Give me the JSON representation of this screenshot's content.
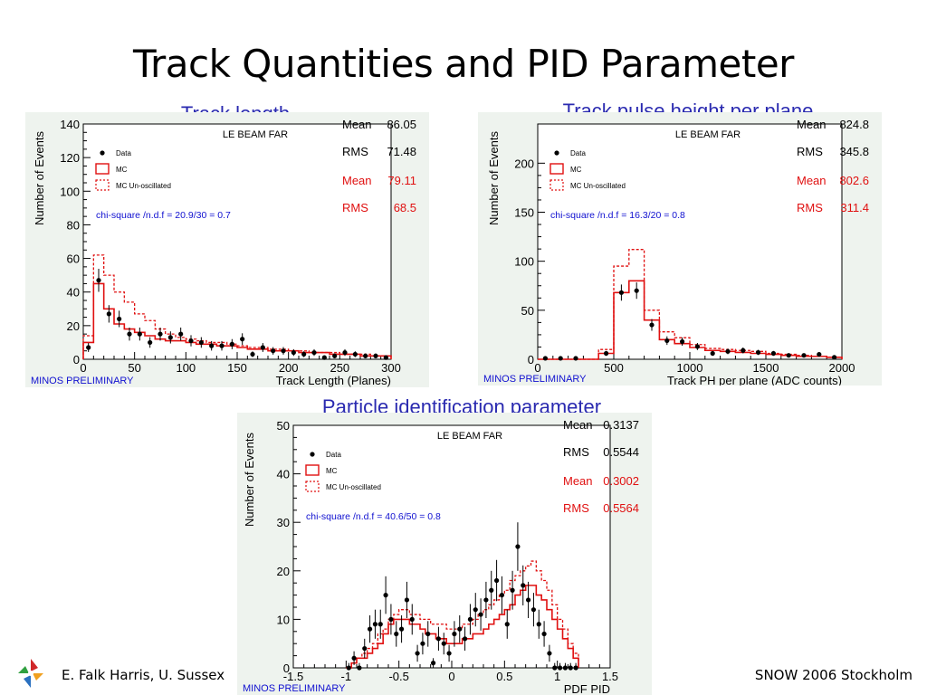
{
  "slide": {
    "title": "Track Quantities and PID Parameter",
    "footer_left": "E. Falk Harris, U. Sussex",
    "footer_right": "SNOW 2006 Stockholm"
  },
  "colors": {
    "caption": "#2a2ab0",
    "mc": "#e01010",
    "data": "#000000",
    "chi": "#1010d0",
    "prelim": "#1010d0",
    "frame_bg": "#eef3ee"
  },
  "chart_data": [
    {
      "type": "histogram",
      "caption": "Track length",
      "title": "LE BEAM FAR",
      "xlabel": "Track Length (Planes)",
      "ylabel": "Number of Events",
      "xlim": [
        0,
        300
      ],
      "ylim": [
        0,
        140
      ],
      "xticks": [
        0,
        50,
        100,
        150,
        200,
        250,
        300
      ],
      "yticks": [
        0,
        20,
        40,
        60,
        80,
        100,
        120,
        140
      ],
      "legend": [
        "Data",
        "MC",
        "MC Un-oscillated"
      ],
      "stats": [
        {
          "label": "Mean",
          "value": "86.05",
          "color": "#000000"
        },
        {
          "label": "RMS",
          "value": "71.48",
          "color": "#000000"
        },
        {
          "label": "Mean",
          "value": "79.11",
          "color": "#e01010"
        },
        {
          "label": "RMS",
          "value": "68.5",
          "color": "#e01010"
        }
      ],
      "chi2": "chi-square /n.d.f =  20.9/30 =   0.7",
      "preliminary": "MINOS PRELIMINARY",
      "bin_edges": [
        0,
        10,
        20,
        30,
        40,
        50,
        60,
        70,
        80,
        90,
        100,
        110,
        120,
        130,
        140,
        150,
        160,
        170,
        180,
        190,
        200,
        210,
        220,
        230,
        240,
        250,
        260,
        270,
        280,
        290,
        300
      ],
      "series": [
        {
          "name": "MC",
          "values": [
            10,
            45,
            30,
            21,
            18,
            16,
            14,
            12,
            11,
            11,
            10,
            9,
            9,
            8,
            8,
            7,
            6,
            6,
            5,
            5,
            5,
            4,
            4,
            4,
            3,
            3,
            3,
            2,
            2,
            2
          ]
        },
        {
          "name": "MC Un-oscillated",
          "values": [
            14,
            62,
            50,
            40,
            34,
            27,
            23,
            18,
            15,
            13,
            12,
            11,
            10,
            10,
            9,
            8,
            7,
            7,
            6,
            6,
            5,
            5,
            4,
            4,
            4,
            3,
            3,
            3,
            2,
            2
          ]
        },
        {
          "name": "Data",
          "values": [
            7,
            47,
            27,
            24,
            15,
            15,
            10,
            15,
            13,
            15,
            11,
            10,
            8,
            8,
            9,
            12,
            3,
            7,
            5,
            5,
            4,
            3,
            4,
            1,
            2,
            4,
            3,
            2,
            2,
            1
          ]
        }
      ]
    },
    {
      "type": "histogram",
      "caption": "Track pulse height per plane",
      "title": "LE BEAM FAR",
      "xlabel": "Track PH per plane (ADC counts)",
      "ylabel": "Number of Events",
      "xlim": [
        0,
        2000
      ],
      "ylim": [
        0,
        240
      ],
      "xticks": [
        0,
        500,
        1000,
        1500,
        2000
      ],
      "yticks": [
        0,
        50,
        100,
        150,
        200
      ],
      "legend": [
        "Data",
        "MC",
        "MC Un-oscillated"
      ],
      "stats": [
        {
          "label": "Mean",
          "value": "824.8",
          "color": "#000000"
        },
        {
          "label": "RMS",
          "value": "345.8",
          "color": "#000000"
        },
        {
          "label": "Mean",
          "value": "802.6",
          "color": "#e01010"
        },
        {
          "label": "RMS",
          "value": "311.4",
          "color": "#e01010"
        }
      ],
      "chi2": "chi-square /n.d.f =  16.3/20 =   0.8",
      "preliminary": "MINOS PRELIMINARY",
      "bin_edges": [
        0,
        100,
        200,
        300,
        400,
        500,
        600,
        700,
        800,
        900,
        1000,
        1100,
        1200,
        1300,
        1400,
        1500,
        1600,
        1700,
        1800,
        1900,
        2000
      ],
      "series": [
        {
          "name": "MC",
          "values": [
            0,
            0,
            0,
            0,
            6,
            68,
            80,
            40,
            20,
            16,
            12,
            9,
            8,
            7,
            6,
            5,
            4,
            3,
            3,
            2
          ]
        },
        {
          "name": "MC Un-oscillated",
          "values": [
            0,
            0,
            0,
            0,
            10,
            95,
            112,
            50,
            28,
            22,
            15,
            11,
            10,
            9,
            8,
            6,
            5,
            4,
            3,
            2
          ]
        },
        {
          "name": "Data",
          "values": [
            1,
            1,
            1,
            null,
            6,
            68,
            70,
            35,
            19,
            18,
            13,
            6,
            8,
            9,
            7,
            6,
            4,
            4,
            5,
            2
          ]
        }
      ]
    },
    {
      "type": "histogram",
      "caption": "Particle identification parameter",
      "title": "LE BEAM FAR",
      "xlabel": "PDF PID",
      "ylabel": "Number of Events",
      "xlim": [
        -1.5,
        1.5
      ],
      "ylim": [
        0,
        50
      ],
      "xticks": [
        -1.5,
        -1,
        -0.5,
        0,
        0.5,
        1,
        1.5
      ],
      "yticks": [
        0,
        10,
        20,
        30,
        40,
        50
      ],
      "legend": [
        "Data",
        "MC",
        "MC Un-oscillated"
      ],
      "stats": [
        {
          "label": "Mean",
          "value": "0.3137",
          "color": "#000000"
        },
        {
          "label": "RMS",
          "value": "0.5544",
          "color": "#000000"
        },
        {
          "label": "Mean",
          "value": "0.3002",
          "color": "#e01010"
        },
        {
          "label": "RMS",
          "value": "0.5564",
          "color": "#e01010"
        }
      ],
      "chi2": "chi-square /n.d.f =  40.6/50 =   0.8",
      "preliminary": "MINOS PRELIMINARY",
      "bin_edges": [
        -1.0,
        -0.95,
        -0.9,
        -0.85,
        -0.8,
        -0.75,
        -0.7,
        -0.65,
        -0.6,
        -0.55,
        -0.5,
        -0.45,
        -0.4,
        -0.35,
        -0.3,
        -0.25,
        -0.2,
        -0.15,
        -0.1,
        -0.05,
        0.0,
        0.05,
        0.1,
        0.15,
        0.2,
        0.25,
        0.3,
        0.35,
        0.4,
        0.45,
        0.5,
        0.55,
        0.6,
        0.65,
        0.7,
        0.75,
        0.8,
        0.85,
        0.9,
        0.95,
        1.0,
        1.05,
        1.1,
        1.15,
        1.2
      ],
      "series": [
        {
          "name": "MC",
          "values": [
            0,
            1,
            2,
            2,
            3,
            4,
            5,
            7,
            9,
            10,
            10,
            10,
            9,
            9,
            8,
            7,
            7,
            6,
            6,
            5,
            5,
            5,
            6,
            6,
            7,
            7,
            8,
            9,
            10,
            11,
            12,
            13,
            15,
            16,
            17,
            17,
            15,
            14,
            12,
            10,
            8,
            6,
            4,
            2
          ]
        },
        {
          "name": "MC Un-oscillated",
          "values": [
            0,
            1,
            2,
            3,
            4,
            5,
            7,
            8,
            10,
            11,
            12,
            12,
            11,
            11,
            10,
            10,
            9,
            9,
            9,
            8,
            8,
            8,
            9,
            9,
            10,
            11,
            12,
            13,
            14,
            15,
            16,
            18,
            19,
            20,
            21,
            22,
            20,
            18,
            16,
            13,
            10,
            8,
            5,
            3
          ]
        },
        {
          "name": "Data",
          "values": [
            0,
            2,
            0,
            4,
            8,
            9,
            9,
            15,
            10,
            7,
            8,
            14,
            10,
            3,
            5,
            7,
            1,
            6,
            5,
            3,
            7,
            8,
            6,
            10,
            12,
            11,
            14,
            16,
            18,
            15,
            9,
            16,
            25,
            17,
            14,
            12,
            9,
            7,
            3,
            0,
            0,
            0,
            0,
            0
          ]
        }
      ]
    }
  ]
}
